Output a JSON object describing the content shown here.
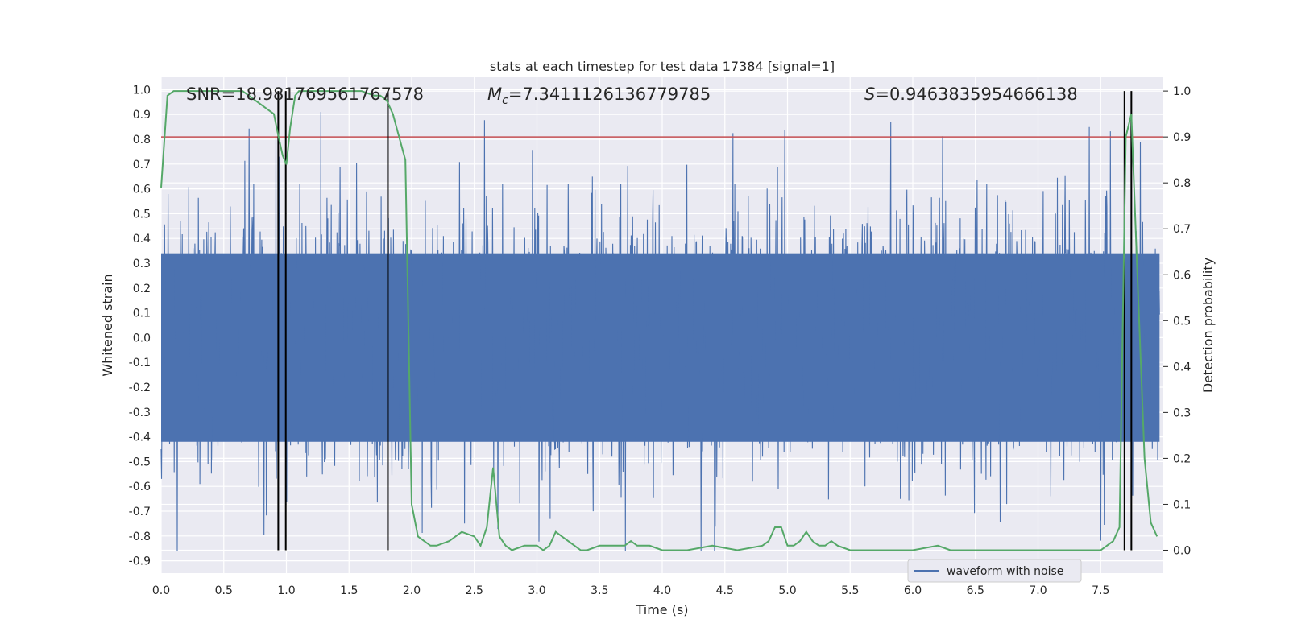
{
  "chart_data": {
    "type": "line",
    "title": "stats at each timestep for test data 17384 [signal=1]",
    "xlabel": "Time (s)",
    "ylabel_left": "Whitened strain",
    "ylabel_right": "Detection probability",
    "xlim": [
      0.0,
      8.0
    ],
    "ylim_left": [
      -0.95,
      1.05
    ],
    "ylim_right": [
      -0.05,
      1.03
    ],
    "x_ticks": [
      "0.0",
      "0.5",
      "1.0",
      "1.5",
      "2.0",
      "2.5",
      "3.0",
      "3.5",
      "4.0",
      "4.5",
      "5.0",
      "5.5",
      "6.0",
      "6.5",
      "7.0",
      "7.5"
    ],
    "y_left_ticks": [
      "1.0",
      "0.9",
      "0.8",
      "0.7",
      "0.6",
      "0.5",
      "0.4",
      "0.3",
      "0.2",
      "0.1",
      "0.0",
      "-0.1",
      "-0.2",
      "-0.3",
      "-0.4",
      "-0.5",
      "-0.6",
      "-0.7",
      "-0.8",
      "-0.9"
    ],
    "y_right_ticks": [
      "1.0",
      "0.9",
      "0.8",
      "0.7",
      "0.6",
      "0.5",
      "0.4",
      "0.3",
      "0.2",
      "0.1",
      "0.0"
    ],
    "grid": true,
    "legend_position": "bottom-right",
    "annotations": {
      "snr": "SNR=18.981769561767578",
      "mc_symbol": "M",
      "mc_sub": "c",
      "mc_value": "=7.3411126136779785",
      "s_symbol": "S",
      "s_value": "=0.9463835954666138"
    },
    "threshold": {
      "value_right_axis": 0.9,
      "color": "#c44e52"
    },
    "vertical_lines": [
      0.935,
      0.995,
      1.81,
      7.69,
      7.745
    ],
    "series": [
      {
        "name": "waveform with noise",
        "color": "#4c72b0",
        "envelope": {
          "peak_max": 0.91,
          "peak_min": -0.86,
          "core_band": [
            -0.42,
            0.34
          ]
        }
      },
      {
        "color": "#55a868",
        "x": [
          0.0,
          0.05,
          0.1,
          0.2,
          0.3,
          0.4,
          0.5,
          0.6,
          0.65,
          0.7,
          0.75,
          0.8,
          0.85,
          0.9,
          0.93,
          0.97,
          1.0,
          1.03,
          1.07,
          1.1,
          1.15,
          1.2,
          1.3,
          1.4,
          1.5,
          1.6,
          1.7,
          1.75,
          1.8,
          1.85,
          1.9,
          1.95,
          2.0,
          2.05,
          2.1,
          2.15,
          2.2,
          2.3,
          2.4,
          2.5,
          2.55,
          2.6,
          2.65,
          2.7,
          2.75,
          2.8,
          2.9,
          3.0,
          3.05,
          3.1,
          3.15,
          3.2,
          3.3,
          3.35,
          3.4,
          3.5,
          3.6,
          3.7,
          3.75,
          3.8,
          3.9,
          4.0,
          4.2,
          4.4,
          4.6,
          4.8,
          4.85,
          4.9,
          4.95,
          5.0,
          5.05,
          5.1,
          5.15,
          5.2,
          5.25,
          5.3,
          5.35,
          5.4,
          5.5,
          5.6,
          5.8,
          6.0,
          6.2,
          6.3,
          6.4,
          6.6,
          6.8,
          7.0,
          7.2,
          7.4,
          7.5,
          7.55,
          7.6,
          7.65,
          7.7,
          7.745,
          7.8,
          7.85,
          7.9,
          7.95
        ],
        "y": [
          0.79,
          0.99,
          1.0,
          1.0,
          1.0,
          1.0,
          1.0,
          1.0,
          1.0,
          0.99,
          0.98,
          0.97,
          0.96,
          0.95,
          0.91,
          0.86,
          0.84,
          0.92,
          0.99,
          1.0,
          1.0,
          1.0,
          1.0,
          1.0,
          1.0,
          1.0,
          0.99,
          0.99,
          0.98,
          0.95,
          0.9,
          0.85,
          0.1,
          0.03,
          0.02,
          0.01,
          0.01,
          0.02,
          0.04,
          0.03,
          0.01,
          0.05,
          0.18,
          0.03,
          0.01,
          0.0,
          0.01,
          0.01,
          0.0,
          0.01,
          0.04,
          0.03,
          0.01,
          0.0,
          0.0,
          0.01,
          0.01,
          0.01,
          0.02,
          0.01,
          0.01,
          0.0,
          0.0,
          0.01,
          0.0,
          0.01,
          0.02,
          0.05,
          0.05,
          0.01,
          0.01,
          0.02,
          0.04,
          0.02,
          0.01,
          0.01,
          0.02,
          0.01,
          0.0,
          0.0,
          0.0,
          0.0,
          0.01,
          0.0,
          0.0,
          0.0,
          0.0,
          0.0,
          0.0,
          0.0,
          0.0,
          0.01,
          0.02,
          0.05,
          0.9,
          0.95,
          0.55,
          0.2,
          0.06,
          0.03
        ]
      }
    ]
  }
}
